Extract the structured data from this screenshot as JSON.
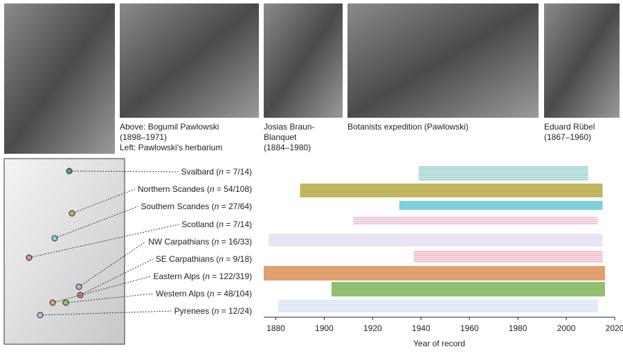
{
  "photos": [
    {
      "caption_lines": [
        "Above: Bogumil Pawlowski",
        "(1898–1971)",
        "Left: Pawlowski's herbarium"
      ]
    },
    {
      "caption_lines": [
        "Josias Braun-",
        "Blanquet",
        "(1884–1980)"
      ]
    },
    {
      "caption_lines": [
        "Botanists expedition (Pawlowski)"
      ]
    },
    {
      "caption_lines": [
        "Eduard Rübel",
        "(1867–1960)"
      ]
    }
  ],
  "chart_data": {
    "type": "range",
    "xlabel": "Year of record",
    "xlim": [
      1875,
      2020
    ],
    "xticks": [
      1880,
      1900,
      1920,
      1940,
      1960,
      1980,
      2000,
      2020
    ],
    "series": [
      {
        "label_parts": [
          "Svalbard (",
          "n",
          " = 7/14)"
        ],
        "color": "#3aa8a0",
        "style": "lines",
        "values": [
          1939,
          2009
        ]
      },
      {
        "label_parts": [
          "Northern Scandes (",
          "n",
          " = 54/108)"
        ],
        "color": "#c2b560",
        "style": "fill",
        "values": [
          1890,
          2015
        ]
      },
      {
        "label_parts": [
          "Southern Scandes (",
          "n",
          " = 27/64)"
        ],
        "color": "#7fd0dc",
        "style": "fill",
        "values": [
          1931,
          2015
        ]
      },
      {
        "label_parts": [
          "Scotland (",
          "n",
          " = 7/14)"
        ],
        "color": "#d88ab0",
        "style": "lines",
        "values": [
          1912,
          2013
        ]
      },
      {
        "label_parts": [
          "NW Carpathians (",
          "n",
          " = 16/33)"
        ],
        "color": "#c6b0e0",
        "style": "lines",
        "values": [
          1877,
          2015
        ]
      },
      {
        "label_parts": [
          "SE Carpathians (",
          "n",
          " = 9/18)"
        ],
        "color": "#e07a90",
        "style": "lines",
        "values": [
          1937,
          2015
        ]
      },
      {
        "label_parts": [
          "Eastern Alps (",
          "n",
          " = 122/319)"
        ],
        "color": "#e0a070",
        "style": "fill",
        "values": [
          1875,
          2016
        ]
      },
      {
        "label_parts": [
          "Western Alps (",
          "n",
          " = 48/104)"
        ],
        "color": "#90c070",
        "style": "fill",
        "values": [
          1903,
          2016
        ]
      },
      {
        "label_parts": [
          "Pyrenees (",
          "n",
          " = 12/24)"
        ],
        "color": "#a8c8e8",
        "style": "lines",
        "values": [
          1881,
          2013
        ]
      }
    ]
  }
}
